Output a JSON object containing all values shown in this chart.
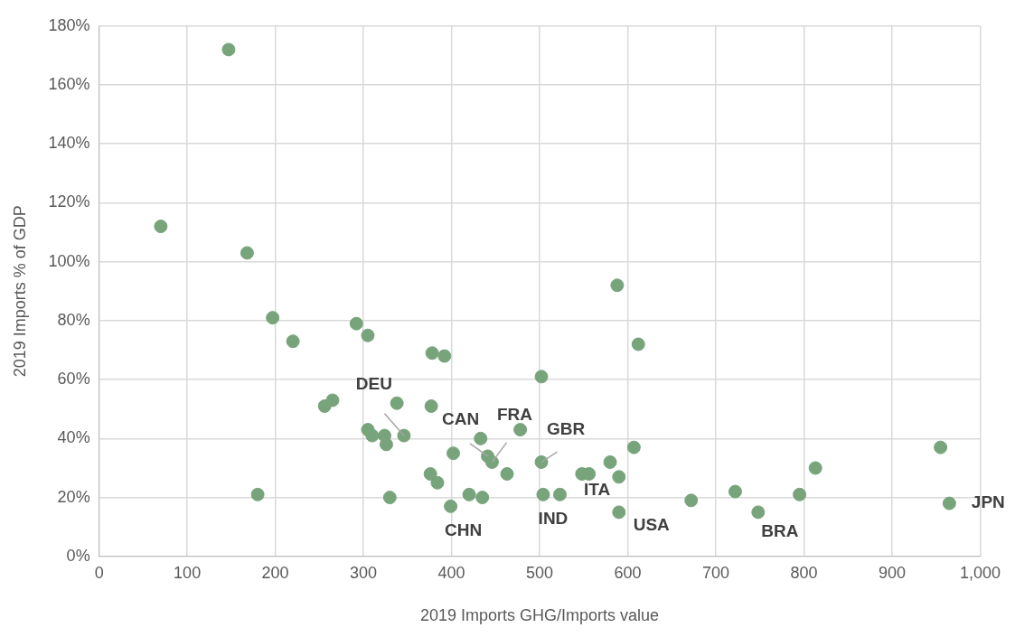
{
  "chart_data": {
    "type": "scatter",
    "xlabel": "2019 Imports GHG/Imports value",
    "ylabel": "2019 Imports % of GDP",
    "marker": "circle",
    "grid": true,
    "legend": false,
    "xlim": [
      0,
      1000
    ],
    "xticks": [
      0,
      100,
      200,
      300,
      400,
      500,
      600,
      700,
      800,
      900,
      {
        "value": 1000,
        "label": "1,000"
      }
    ],
    "ylim": [
      0,
      180
    ],
    "yticks": [
      {
        "value": 0,
        "label": "0%"
      },
      {
        "value": 20,
        "label": "20%"
      },
      {
        "value": 40,
        "label": "40%"
      },
      {
        "value": 60,
        "label": "60%"
      },
      {
        "value": 80,
        "label": "80%"
      },
      {
        "value": 100,
        "label": "100%"
      },
      {
        "value": 120,
        "label": "120%"
      },
      {
        "value": 140,
        "label": "140%"
      },
      {
        "value": 160,
        "label": "160%"
      },
      {
        "value": 180,
        "label": "180%"
      }
    ],
    "series": [
      {
        "color": "#78a47c",
        "x": [
          70,
          147,
          168,
          180,
          197,
          220,
          256,
          265,
          292,
          305,
          305,
          310,
          324,
          326,
          330,
          338,
          346,
          377,
          376,
          384,
          378,
          392,
          399,
          402,
          420,
          433,
          435,
          441,
          446,
          463,
          478,
          502,
          502,
          504,
          523,
          548,
          556,
          580,
          588,
          590,
          590,
          607,
          612,
          672,
          722,
          748,
          795,
          813,
          955,
          965
        ],
        "values": [
          112,
          172,
          103,
          21,
          81,
          73,
          51,
          53,
          79,
          75,
          43,
          41,
          41,
          38,
          20,
          52,
          41,
          51,
          28,
          25,
          69,
          68,
          17,
          35,
          21,
          40,
          20,
          34,
          32,
          28,
          43,
          61,
          32,
          21,
          21,
          28,
          28,
          32,
          92,
          15,
          27,
          37,
          72,
          19,
          22,
          15,
          21,
          30,
          37,
          18
        ]
      }
    ],
    "annotations": [
      {
        "text": "DEU",
        "x": 346,
        "y": 41
      },
      {
        "text": "CHN",
        "x": 399,
        "y": 17
      },
      {
        "text": "CAN",
        "x": 441,
        "y": 34
      },
      {
        "text": "FRA",
        "x": 446,
        "y": 32
      },
      {
        "text": "GBR",
        "x": 502,
        "y": 32
      },
      {
        "text": "IND",
        "x": 504,
        "y": 21
      },
      {
        "text": "ITA",
        "x": 556,
        "y": 28
      },
      {
        "text": "USA",
        "x": 590,
        "y": 15
      },
      {
        "text": "BRA",
        "x": 748,
        "y": 15
      },
      {
        "text": "JPN",
        "x": 965,
        "y": 18
      }
    ]
  }
}
